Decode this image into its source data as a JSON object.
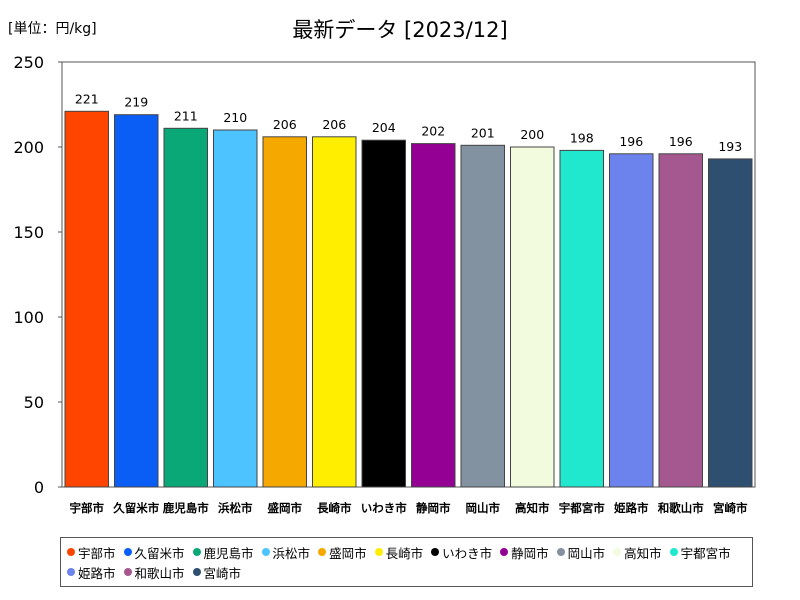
{
  "unit_label": "[単位：円/kg]",
  "chart_data": {
    "type": "bar",
    "title": "最新データ [2023/12]",
    "categories": [
      "宇部市",
      "久留米市",
      "鹿児島市",
      "浜松市",
      "盛岡市",
      "長崎市",
      "いわき市",
      "静岡市",
      "岡山市",
      "高知市",
      "宇都宮市",
      "姫路市",
      "和歌山市",
      "宮崎市"
    ],
    "values": [
      221,
      219,
      211,
      210,
      206,
      206,
      204,
      202,
      201,
      200,
      198,
      196,
      196,
      193
    ],
    "colors": [
      "#ff4500",
      "#0a5ef5",
      "#0aa877",
      "#4dc4ff",
      "#f5a800",
      "#ffee00",
      "#000000",
      "#940094",
      "#8292a0",
      "#f3fbdf",
      "#1fe8cf",
      "#6c82ec",
      "#a5578f",
      "#2f4f70"
    ],
    "ylim": [
      0,
      250
    ],
    "yticks": [
      0,
      50,
      100,
      150,
      200,
      250
    ],
    "grid": false,
    "legend_position": "bottom"
  }
}
